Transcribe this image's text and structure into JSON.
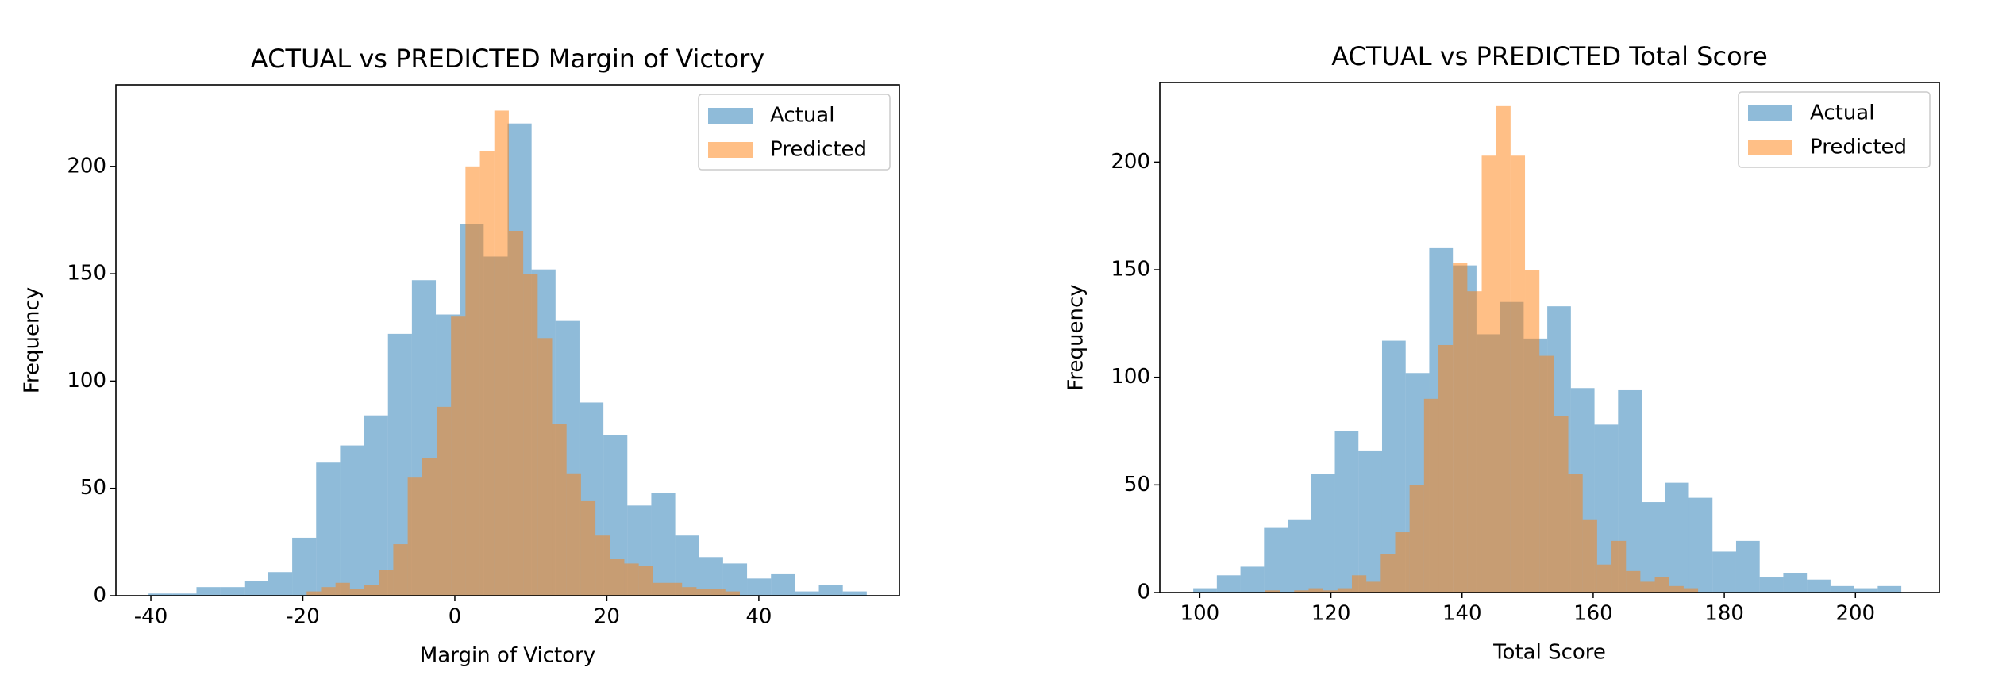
{
  "chart_data": [
    {
      "type": "histogram",
      "title": "ACTUAL vs PREDICTED Margin of Victory",
      "x_label": "Margin of Victory",
      "y_label": "Frequency",
      "xlim": [
        -44.6,
        58.5
      ],
      "ylim": [
        0,
        238
      ],
      "xticks": [
        -40,
        -20,
        0,
        20,
        40
      ],
      "yticks": [
        0,
        50,
        100,
        150,
        200
      ],
      "legend": "upper right",
      "alpha": 0.5,
      "series": [
        {
          "name": "Actual",
          "color": "#1f77b4",
          "bins": [
            -40.3,
            -37.15,
            -34,
            -30.85,
            -27.7,
            -24.55,
            -21.4,
            -18.25,
            -15.1,
            -11.95,
            -8.8,
            -5.65,
            -2.5,
            0.65,
            3.8,
            6.95,
            10.1,
            13.25,
            16.4,
            19.55,
            22.7,
            25.85,
            29,
            32.15,
            35.3,
            38.45,
            41.6,
            44.75,
            47.9,
            51.05,
            54.2
          ],
          "values": [
            1,
            1,
            4,
            4,
            7,
            11,
            27,
            62,
            70,
            84,
            122,
            147,
            131,
            173,
            158,
            220,
            152,
            128,
            90,
            75,
            42,
            48,
            28,
            18,
            15,
            8,
            10,
            2,
            5,
            2
          ]
        },
        {
          "name": "Predicted",
          "color": "#ff7f0e",
          "bins": [
            -19.5,
            -17.6,
            -15.7,
            -13.8,
            -11.9,
            -10,
            -8.1,
            -6.2,
            -4.3,
            -2.4,
            -0.5,
            1.4,
            3.3,
            5.2,
            7.1,
            9,
            10.9,
            12.8,
            14.7,
            16.6,
            18.5,
            20.4,
            22.3,
            24.2,
            26.1,
            28,
            29.9,
            31.8,
            33.7,
            35.6,
            37.5
          ],
          "values": [
            2,
            4,
            6,
            3,
            5,
            12,
            24,
            55,
            64,
            88,
            130,
            200,
            207,
            226,
            170,
            150,
            120,
            80,
            57,
            44,
            28,
            17,
            15,
            14,
            6,
            6,
            4,
            3,
            3,
            2
          ]
        }
      ]
    },
    {
      "type": "histogram",
      "title": "ACTUAL vs PREDICTED Total Score",
      "x_label": "Total Score",
      "y_label": "Frequency",
      "xlim": [
        93.9,
        212.8
      ],
      "ylim": [
        0,
        237
      ],
      "xticks": [
        100,
        120,
        140,
        160,
        180,
        200
      ],
      "yticks": [
        0,
        50,
        100,
        150,
        200
      ],
      "legend": "upper right",
      "alpha": 0.5,
      "series": [
        {
          "name": "Actual",
          "color": "#1f77b4",
          "bins": [
            99,
            102.6,
            106.2,
            109.8,
            113.4,
            117,
            120.6,
            124.2,
            127.8,
            131.4,
            135,
            138.6,
            142.2,
            145.8,
            149.4,
            153,
            156.6,
            160.2,
            163.8,
            167.4,
            171,
            174.6,
            178.2,
            181.8,
            185.4,
            189,
            192.6,
            196.2,
            199.8,
            203.4,
            207
          ],
          "values": [
            2,
            8,
            12,
            30,
            34,
            55,
            75,
            66,
            117,
            102,
            160,
            152,
            120,
            135,
            118,
            133,
            95,
            78,
            94,
            42,
            51,
            44,
            19,
            24,
            7,
            9,
            6,
            3,
            2,
            3
          ]
        },
        {
          "name": "Predicted",
          "color": "#ff7f0e",
          "bins": [
            110,
            112.2,
            114.4,
            116.6,
            118.8,
            121,
            123.2,
            125.4,
            127.6,
            129.8,
            132,
            134.2,
            136.4,
            138.6,
            140.8,
            143,
            145.2,
            147.4,
            149.6,
            151.8,
            154,
            156.2,
            158.4,
            160.6,
            162.8,
            165,
            167.2,
            169.4,
            171.6,
            173.8,
            176
          ],
          "values": [
            1,
            0,
            1,
            2,
            1,
            2,
            8,
            5,
            18,
            28,
            50,
            90,
            115,
            153,
            140,
            203,
            226,
            203,
            150,
            110,
            82,
            55,
            34,
            13,
            24,
            10,
            5,
            7,
            3,
            2
          ]
        }
      ]
    }
  ]
}
